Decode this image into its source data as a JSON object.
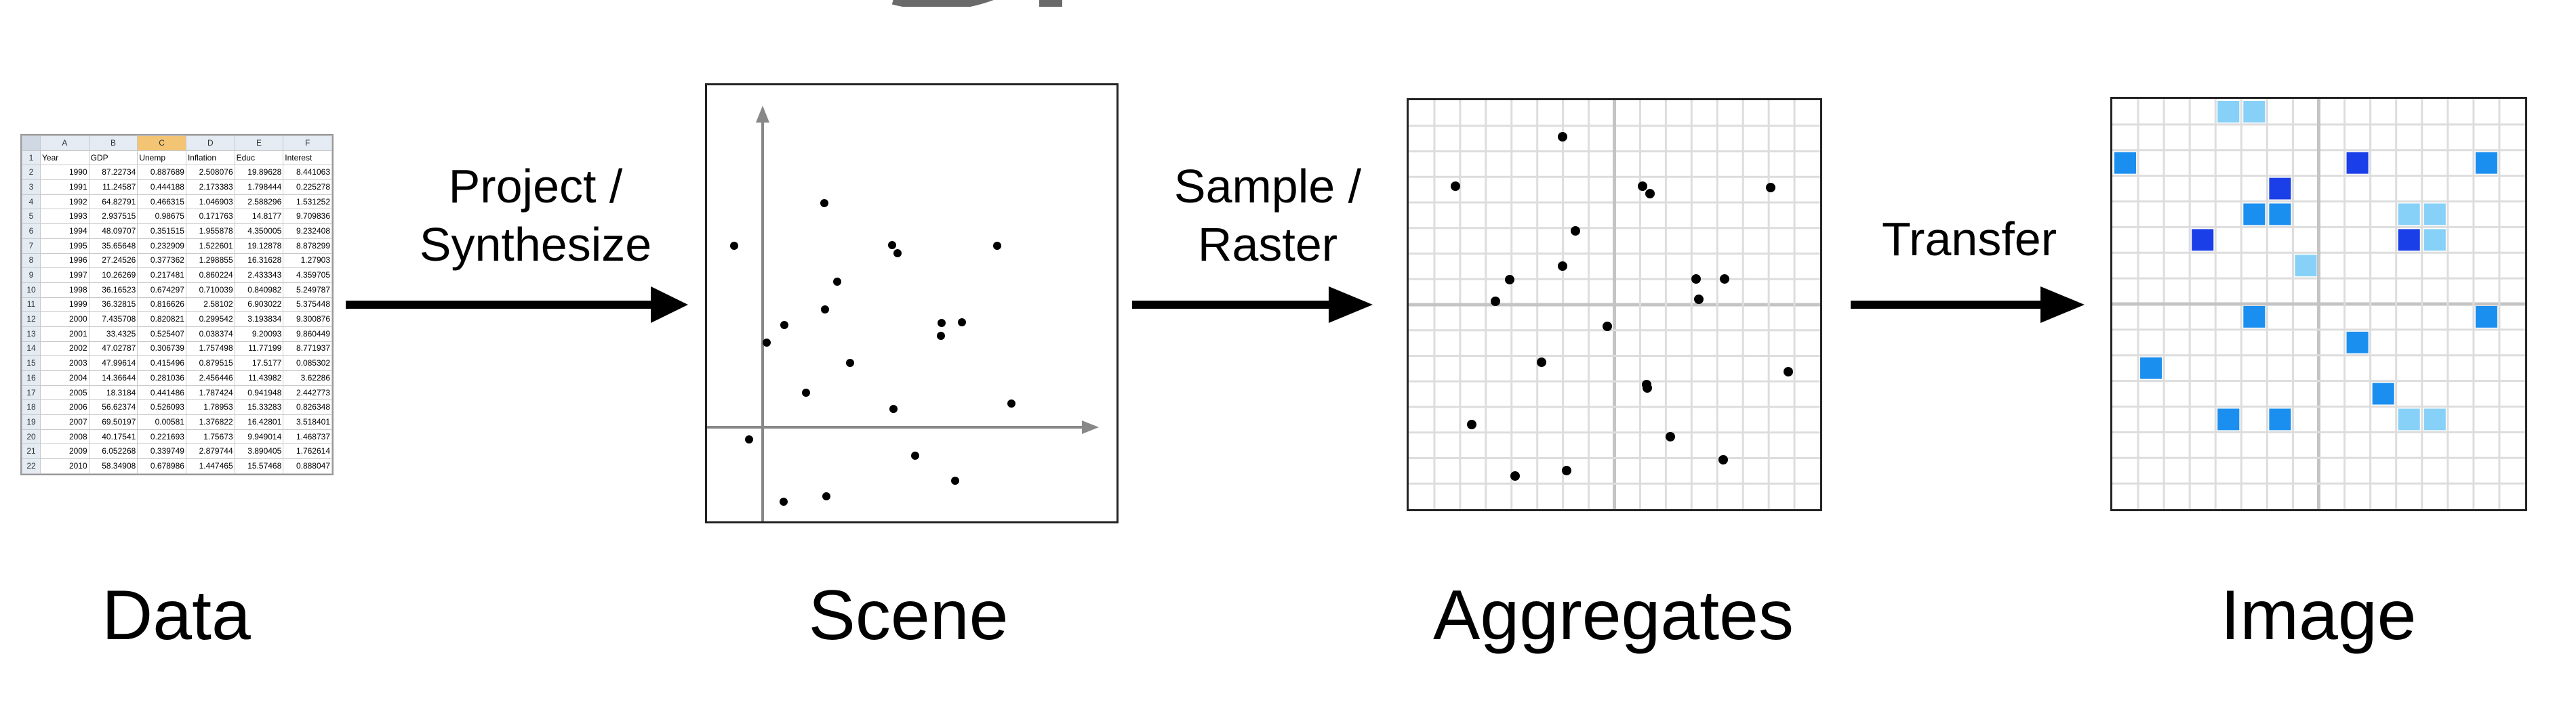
{
  "stages": {
    "data": "Data",
    "scene": "Scene",
    "aggregates": "Aggregates",
    "image": "Image"
  },
  "arrows": {
    "project_line1": "Project /",
    "project_line2": "Synthesize",
    "sample_line1": "Sample /",
    "sample_line2": "Raster",
    "transfer": "Transfer"
  },
  "spreadsheet": {
    "column_letters": [
      "A",
      "B",
      "C",
      "D",
      "E",
      "F"
    ],
    "selected_column": "C",
    "headers": [
      "Year",
      "GDP",
      "Unemp",
      "Inflation",
      "Educ",
      "Interest"
    ],
    "rows": [
      [
        "1990",
        "87.22734",
        "0.887689",
        "2.508076",
        "19.89628",
        "8.441063"
      ],
      [
        "1991",
        "11.24587",
        "0.444188",
        "2.173383",
        "1.798444",
        "0.225278"
      ],
      [
        "1992",
        "64.82791",
        "0.466315",
        "1.046903",
        "2.588296",
        "1.531252"
      ],
      [
        "1993",
        "2.937515",
        "0.98675",
        "0.171763",
        "14.8177",
        "9.709836"
      ],
      [
        "1994",
        "48.09707",
        "0.351515",
        "1.955878",
        "4.350005",
        "9.232408"
      ],
      [
        "1995",
        "35.65648",
        "0.232909",
        "1.522601",
        "19.12878",
        "8.878299"
      ],
      [
        "1996",
        "27.24526",
        "0.377362",
        "1.298855",
        "16.31628",
        "1.27903"
      ],
      [
        "1997",
        "10.26269",
        "0.217481",
        "0.860224",
        "2.433343",
        "4.359705"
      ],
      [
        "1998",
        "36.16523",
        "0.674297",
        "0.710039",
        "0.840982",
        "5.249787"
      ],
      [
        "1999",
        "36.32815",
        "0.816626",
        "2.58102",
        "6.903022",
        "5.375448"
      ],
      [
        "2000",
        "7.435708",
        "0.820821",
        "0.299542",
        "3.193834",
        "9.300876"
      ],
      [
        "2001",
        "33.4325",
        "0.525407",
        "0.038374",
        "9.20093",
        "9.860449"
      ],
      [
        "2002",
        "47.02787",
        "0.306739",
        "1.757498",
        "11.77199",
        "8.771937"
      ],
      [
        "2003",
        "47.99614",
        "0.415496",
        "0.879515",
        "17.5177",
        "0.085302"
      ],
      [
        "2004",
        "14.36644",
        "0.281036",
        "2.456446",
        "11.43982",
        "3.62286"
      ],
      [
        "2005",
        "18.3184",
        "0.441486",
        "1.787424",
        "0.941948",
        "2.442773"
      ],
      [
        "2006",
        "56.62374",
        "0.526093",
        "1.78953",
        "15.33283",
        "0.826348"
      ],
      [
        "2007",
        "69.50197",
        "0.00581",
        "1.376822",
        "16.42801",
        "3.518401"
      ],
      [
        "2008",
        "40.17541",
        "0.221693",
        "1.75673",
        "9.949014",
        "1.468737"
      ],
      [
        "2009",
        "6.052268",
        "0.339749",
        "2.879744",
        "3.890405",
        "1.762614"
      ],
      [
        "2010",
        "58.34908",
        "0.678986",
        "1.447465",
        "15.57468",
        "0.888047"
      ]
    ]
  },
  "colors": {
    "ink": "#000000",
    "axis": "#888888",
    "grid": "#dddddd",
    "grid_major": "#c4c4c4",
    "blue_light": "#87d1f8",
    "blue_mid": "#1b8ff0",
    "blue_dark": "#1a3ee8"
  }
}
